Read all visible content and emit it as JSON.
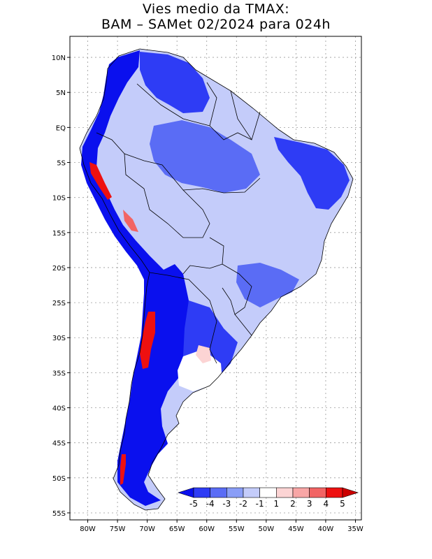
{
  "title": {
    "line1": "Vies medio da TMAX:",
    "line2": "BAM – SAMet 02/2024  para 024h"
  },
  "map": {
    "lon_range": [
      -83,
      -34
    ],
    "lat_range": [
      -56,
      13
    ],
    "grid": true,
    "x_ticks": [
      {
        "lon": -80,
        "label": "80W"
      },
      {
        "lon": -75,
        "label": "75W"
      },
      {
        "lon": -70,
        "label": "70W"
      },
      {
        "lon": -65,
        "label": "65W"
      },
      {
        "lon": -60,
        "label": "60W"
      },
      {
        "lon": -55,
        "label": "55W"
      },
      {
        "lon": -50,
        "label": "50W"
      },
      {
        "lon": -45,
        "label": "45W"
      },
      {
        "lon": -40,
        "label": "40W"
      },
      {
        "lon": -35,
        "label": "35W"
      }
    ],
    "y_ticks": [
      {
        "lat": 10,
        "label": "10N"
      },
      {
        "lat": 5,
        "label": "5N"
      },
      {
        "lat": 0,
        "label": "EQ"
      },
      {
        "lat": -5,
        "label": "5S"
      },
      {
        "lat": -10,
        "label": "10S"
      },
      {
        "lat": -15,
        "label": "15S"
      },
      {
        "lat": -20,
        "label": "20S"
      },
      {
        "lat": -25,
        "label": "25S"
      },
      {
        "lat": -30,
        "label": "30S"
      },
      {
        "lat": -35,
        "label": "35S"
      },
      {
        "lat": -40,
        "label": "40S"
      },
      {
        "lat": -45,
        "label": "45S"
      },
      {
        "lat": -50,
        "label": "50S"
      },
      {
        "lat": -55,
        "label": "55S"
      }
    ]
  },
  "colorbar": {
    "labels": [
      "-5",
      "-4",
      "-3",
      "-2",
      "-1",
      "1",
      "2",
      "3",
      "4",
      "5"
    ],
    "colors": [
      "#0a10ee",
      "#2e3cf5",
      "#5a6cf5",
      "#8a9ef7",
      "#c4ccfa",
      "#ffffff",
      "#fcd4d4",
      "#f8a6a6",
      "#f26464",
      "#ee1010",
      "#cc0000"
    ]
  },
  "colors": {
    "strong_negative": "#0a10ee",
    "negative": "#5a6cf5",
    "weak_negative": "#c4ccfa",
    "neutral": "#ffffff",
    "positive": "#f26464",
    "strong_positive": "#ee1010",
    "border": "#000000"
  }
}
